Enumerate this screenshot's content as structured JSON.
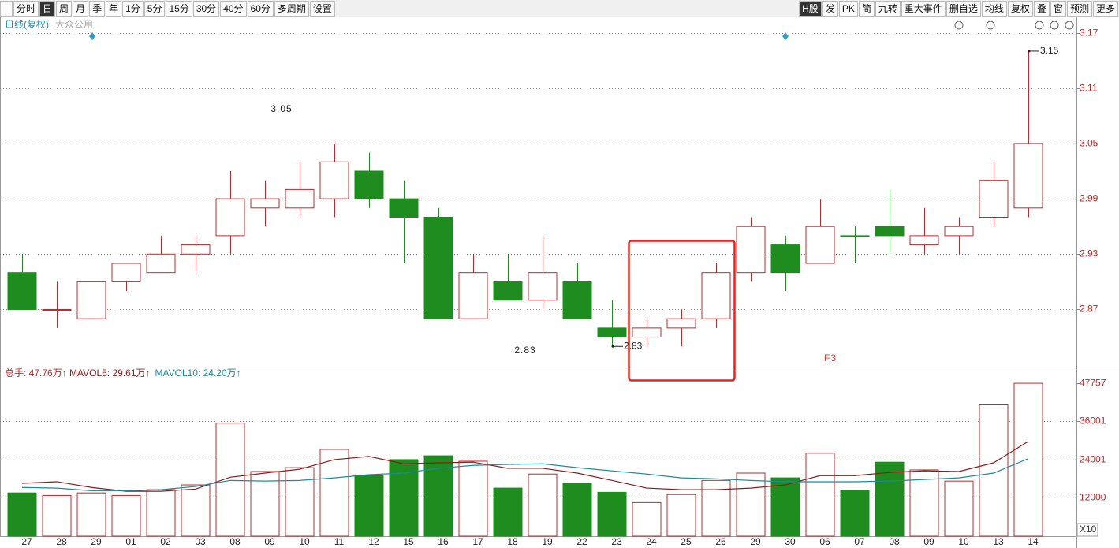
{
  "toolbar": {
    "left": [
      "分时",
      "日",
      "周",
      "月",
      "季",
      "年",
      "1分",
      "5分",
      "15分",
      "30分",
      "40分",
      "60分",
      "多周期",
      "设置"
    ],
    "right": [
      "H股",
      "发",
      "PK",
      "简",
      "九转",
      "重大事件",
      "删自选",
      "均线",
      "复权",
      "叠",
      "窗",
      "预测",
      "更多"
    ]
  },
  "chart_data": {
    "type": "candlestick",
    "title": "日线(复权)",
    "subtitle": "大众公用",
    "categories": [
      "27",
      "28",
      "29",
      "01",
      "02",
      "03",
      "08",
      "09",
      "10",
      "11",
      "12",
      "15",
      "16",
      "17",
      "18",
      "19",
      "22",
      "23",
      "24",
      "25",
      "26",
      "29",
      "30",
      "06",
      "07",
      "08",
      "09",
      "10",
      "13",
      "14"
    ],
    "open": [
      2.91,
      2.87,
      2.86,
      2.9,
      2.91,
      2.93,
      2.95,
      2.98,
      2.98,
      2.99,
      3.02,
      2.99,
      2.97,
      2.86,
      2.9,
      2.88,
      2.9,
      2.85,
      2.84,
      2.85,
      2.86,
      2.91,
      2.94,
      2.92,
      2.95,
      2.96,
      2.94,
      2.95,
      2.97,
      2.98
    ],
    "high": [
      2.93,
      2.9,
      2.9,
      2.92,
      2.95,
      2.95,
      3.02,
      3.01,
      3.03,
      3.05,
      3.04,
      3.01,
      2.98,
      2.93,
      2.93,
      2.95,
      2.92,
      2.88,
      2.86,
      2.87,
      2.92,
      2.97,
      2.95,
      2.99,
      2.96,
      3.0,
      2.98,
      2.97,
      3.03,
      3.15
    ],
    "low": [
      2.87,
      2.85,
      2.86,
      2.89,
      2.91,
      2.91,
      2.93,
      2.96,
      2.97,
      2.97,
      2.98,
      2.92,
      2.86,
      2.86,
      2.88,
      2.87,
      2.86,
      2.83,
      2.83,
      2.83,
      2.85,
      2.9,
      2.89,
      2.92,
      2.92,
      2.93,
      2.93,
      2.93,
      2.96,
      2.97
    ],
    "close": [
      2.87,
      2.87,
      2.9,
      2.92,
      2.93,
      2.94,
      2.99,
      2.99,
      3.0,
      3.03,
      2.99,
      2.97,
      2.86,
      2.91,
      2.88,
      2.91,
      2.86,
      2.84,
      2.85,
      2.86,
      2.91,
      2.96,
      2.91,
      2.96,
      2.95,
      2.95,
      2.95,
      2.96,
      3.01,
      3.05
    ],
    "up_color": "#c0282a",
    "down_color": "#1e8c1e",
    "ylim": [
      2.808,
      3.185
    ],
    "yticks": [
      2.87,
      2.93,
      2.99,
      3.05,
      3.11,
      3.17
    ],
    "grid": true,
    "max_label": 3.15,
    "min_label": 2.83,
    "annotations": [
      "3.05",
      "2.83",
      "F3"
    ],
    "volume": {
      "type": "bar",
      "label": "总手: 47.76万↑",
      "scale_label": "X10",
      "values": [
        13500,
        12700,
        13500,
        12700,
        14500,
        16000,
        35300,
        20200,
        21400,
        27100,
        18900,
        23900,
        25100,
        23400,
        15000,
        19400,
        16500,
        13700,
        10500,
        13000,
        17400,
        19700,
        18200,
        25900,
        14200,
        23100,
        20700,
        17200,
        41000,
        47757
      ],
      "ylim": [
        0,
        52700
      ],
      "yticks": [
        12000,
        24001,
        36001,
        47757
      ],
      "grid": true,
      "series": [
        {
          "name": "MAVOL5: 29.61万↑",
          "color": "#8b1c1c",
          "values": [
            16500,
            17000,
            15200,
            14000,
            14000,
            14700,
            18400,
            19700,
            20900,
            23900,
            24900,
            22600,
            22900,
            23100,
            21200,
            21200,
            19700,
            17400,
            15000,
            14500,
            14500,
            15000,
            16000,
            18900,
            18900,
            19900,
            20400,
            20200,
            22900,
            29610
          ]
        },
        {
          "name": "MAVOL10: 24.20万↑",
          "color": "#1f8a9a",
          "values": [
            15200,
            15000,
            14200,
            14200,
            14500,
            15500,
            17400,
            17200,
            17400,
            18200,
            19200,
            19700,
            21200,
            22100,
            22400,
            22600,
            21400,
            20400,
            19400,
            18200,
            17900,
            17400,
            17000,
            17000,
            17000,
            17200,
            17700,
            18200,
            19700,
            24200
          ]
        }
      ]
    }
  }
}
